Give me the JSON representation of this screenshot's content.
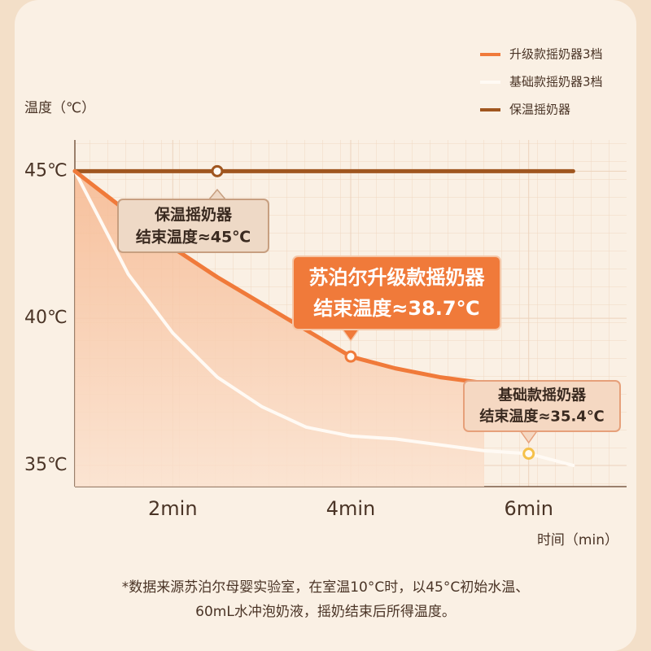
{
  "chart_data": {
    "type": "line",
    "y_axis_label": "温度（℃）",
    "x_axis_label": "时间（min）",
    "x": [
      0.9,
      1.5,
      2,
      2.5,
      3,
      3.5,
      4,
      4.5,
      5,
      5.5,
      6,
      6.5
    ],
    "xlim": [
      0.9,
      7.1
    ],
    "xticks": [
      {
        "value": 2,
        "label": "2min"
      },
      {
        "value": 4,
        "label": "4min"
      },
      {
        "value": 6,
        "label": "6min"
      }
    ],
    "ylim": [
      34.28,
      46.06
    ],
    "yticks": [
      {
        "value": 35,
        "label": "35℃"
      },
      {
        "value": 40,
        "label": "40℃"
      },
      {
        "value": 45,
        "label": "45℃"
      }
    ],
    "grid": true,
    "legend_position": "top-right",
    "series": [
      {
        "name": "升级款摇奶器3档",
        "color": "#f07a3a",
        "values": [
          45,
          43.6,
          42.4,
          41.4,
          40.5,
          39.6,
          38.7,
          38.3,
          38.0,
          37.8,
          null,
          null
        ]
      },
      {
        "name": "基础款摇奶器3档",
        "color": "#fffaf4",
        "values": [
          45,
          41.5,
          39.5,
          38.0,
          37.0,
          36.3,
          36.0,
          35.9,
          35.7,
          35.5,
          35.4,
          35.0
        ]
      },
      {
        "name": "保温摇奶器",
        "color": "#a0561f",
        "values": [
          45,
          45,
          45,
          45,
          45,
          45,
          45,
          45,
          45,
          45,
          45,
          45
        ]
      }
    ],
    "annotations": [
      {
        "series": 2,
        "point": 3,
        "lines": [
          "保温摇奶器",
          "结束温度≈45℃"
        ]
      },
      {
        "series": 0,
        "point": 6,
        "lines": [
          "苏泊尔升级款摇奶器",
          "结束温度≈38.7℃"
        ]
      },
      {
        "series": 1,
        "point": 10,
        "lines": [
          "基础款摇奶器",
          "结束温度≈35.4℃"
        ]
      }
    ],
    "footnote": [
      "*数据来源苏泊尔母婴实验室，在室温10°C时，以45°C初始水温、",
      "60mL水冲泡奶液，摇奶结束后所得温度。"
    ]
  }
}
